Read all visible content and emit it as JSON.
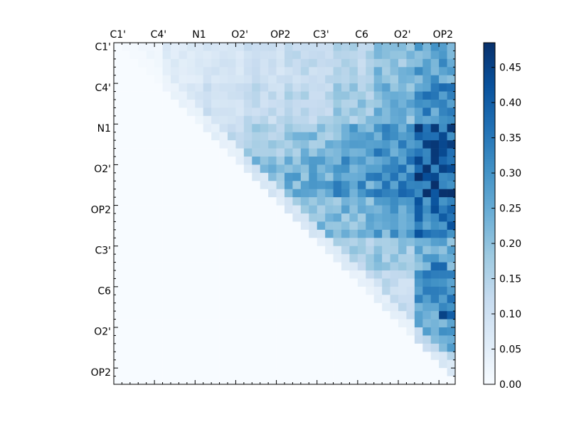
{
  "chart_data": {
    "type": "heatmap",
    "title": "",
    "xlabel": "",
    "ylabel": "",
    "matrix_size": 42,
    "x_tick_labels": [
      "C1'",
      "C4'",
      "N1",
      "O2'",
      "OP2",
      "C3'",
      "C6",
      "O2'",
      "OP2"
    ],
    "y_tick_labels": [
      "C1'",
      "C4'",
      "N1",
      "O2'",
      "OP2",
      "C3'",
      "C6",
      "O2'",
      "OP2"
    ],
    "label_every": 5,
    "x_tick_position": "top",
    "colormap": "Blues",
    "colorbar": {
      "vmin": 0.0,
      "vmax": 0.485,
      "ticks": [
        0.0,
        0.05,
        0.1,
        0.15,
        0.2,
        0.25,
        0.3,
        0.35,
        0.4,
        0.45
      ],
      "tick_labels": [
        "0.00",
        "0.05",
        "0.10",
        "0.15",
        "0.20",
        "0.25",
        "0.30",
        "0.35",
        "0.40",
        "0.45"
      ]
    },
    "band_values": [
      [
        0.02,
        0.06,
        0.08,
        0.1,
        0.12,
        0.14,
        0.2,
        0.26
      ],
      [
        0.03,
        0.08,
        0.1,
        0.12,
        0.14,
        0.18,
        0.22,
        0.3
      ],
      [
        0.04,
        0.08,
        0.12,
        0.16,
        0.2,
        0.24,
        0.3,
        0.38
      ],
      [
        0.04,
        0.06,
        0.12,
        0.2,
        0.24,
        0.28,
        0.32,
        0.4
      ],
      [
        0.0,
        0.04,
        0.1,
        0.16,
        0.2,
        0.22,
        0.26,
        0.34
      ],
      [
        0.0,
        0.0,
        0.0,
        0.08,
        0.12,
        0.16,
        0.18,
        0.24
      ],
      [
        0.0,
        0.0,
        0.0,
        0.0,
        0.08,
        0.1,
        0.12,
        0.3
      ],
      [
        0.0,
        0.0,
        0.0,
        0.0,
        0.0,
        0.06,
        0.1,
        0.28
      ],
      [
        0.0,
        0.0,
        0.0,
        0.0,
        0.0,
        0.0,
        0.0,
        0.16
      ]
    ],
    "peaks": [
      {
        "row": 12,
        "col": 39,
        "value": 0.47
      },
      {
        "row": 12,
        "col": 40,
        "value": 0.44
      },
      {
        "row": 20,
        "col": 39,
        "value": 0.43
      },
      {
        "row": 33,
        "col": 40,
        "value": 0.45
      },
      {
        "row": 33,
        "col": 41,
        "value": 0.4
      },
      {
        "row": 27,
        "col": 39,
        "value": 0.38
      },
      {
        "row": 27,
        "col": 40,
        "value": 0.38
      },
      {
        "row": 28,
        "col": 39,
        "value": 0.34
      },
      {
        "row": 28,
        "col": 40,
        "value": 0.34
      },
      {
        "row": 28,
        "col": 41,
        "value": 0.34
      }
    ]
  }
}
